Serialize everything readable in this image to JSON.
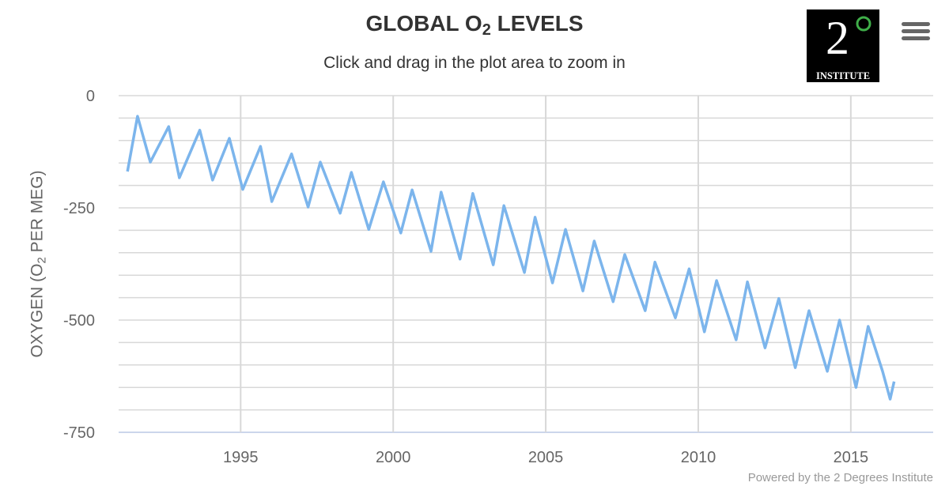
{
  "title": {
    "main": "GLOBAL O",
    "sub": "2",
    "rest": " LEVELS"
  },
  "subtitle": "Click and drag in the plot area to zoom in",
  "credit": "Powered by the 2 Degrees Institute",
  "logo": {
    "digit": "2",
    "text": "INSTITUTE",
    "ring_color": "#3fae49"
  },
  "menu_icon": "hamburger-menu-icon",
  "chart_data": {
    "type": "line",
    "title": "GLOBAL O2 LEVELS",
    "ylabel": {
      "pre": "OXYGEN (O",
      "sub": "2",
      "post": " PER MEG)"
    },
    "xlabel": "",
    "xlim": [
      1991.0,
      2017.7
    ],
    "ylim": [
      -750,
      0
    ],
    "xticks": [
      1995,
      2000,
      2005,
      2010,
      2015
    ],
    "yticks": [
      0,
      -250,
      -500,
      -750
    ],
    "minor_grid_step": 50,
    "grid": true,
    "color": "#7cb5ec",
    "x": [
      1991.29,
      1991.62,
      1992.04,
      1992.64,
      1992.99,
      1993.66,
      1994.08,
      1994.63,
      1995.07,
      1995.65,
      1996.02,
      1996.67,
      1997.21,
      1997.61,
      1998.26,
      1998.63,
      1999.2,
      1999.68,
      2000.25,
      2000.62,
      2001.24,
      2001.57,
      2002.19,
      2002.61,
      2003.28,
      2003.63,
      2004.3,
      2004.65,
      2005.22,
      2005.65,
      2006.22,
      2006.59,
      2007.21,
      2007.59,
      2008.26,
      2008.58,
      2009.25,
      2009.7,
      2010.2,
      2010.6,
      2011.24,
      2011.61,
      2012.19,
      2012.64,
      2013.18,
      2013.63,
      2014.23,
      2014.63,
      2015.17,
      2015.57,
      2016.04,
      2016.29,
      2016.42
    ],
    "y": [
      -169,
      -46,
      -148,
      -69,
      -183,
      -77,
      -188,
      -95,
      -209,
      -113,
      -236,
      -130,
      -248,
      -148,
      -262,
      -171,
      -298,
      -192,
      -306,
      -210,
      -347,
      -215,
      -364,
      -218,
      -377,
      -245,
      -394,
      -271,
      -417,
      -298,
      -435,
      -324,
      -459,
      -354,
      -479,
      -371,
      -495,
      -386,
      -526,
      -412,
      -544,
      -415,
      -562,
      -452,
      -606,
      -479,
      -614,
      -500,
      -650,
      -514,
      -614,
      -676,
      -637
    ]
  }
}
